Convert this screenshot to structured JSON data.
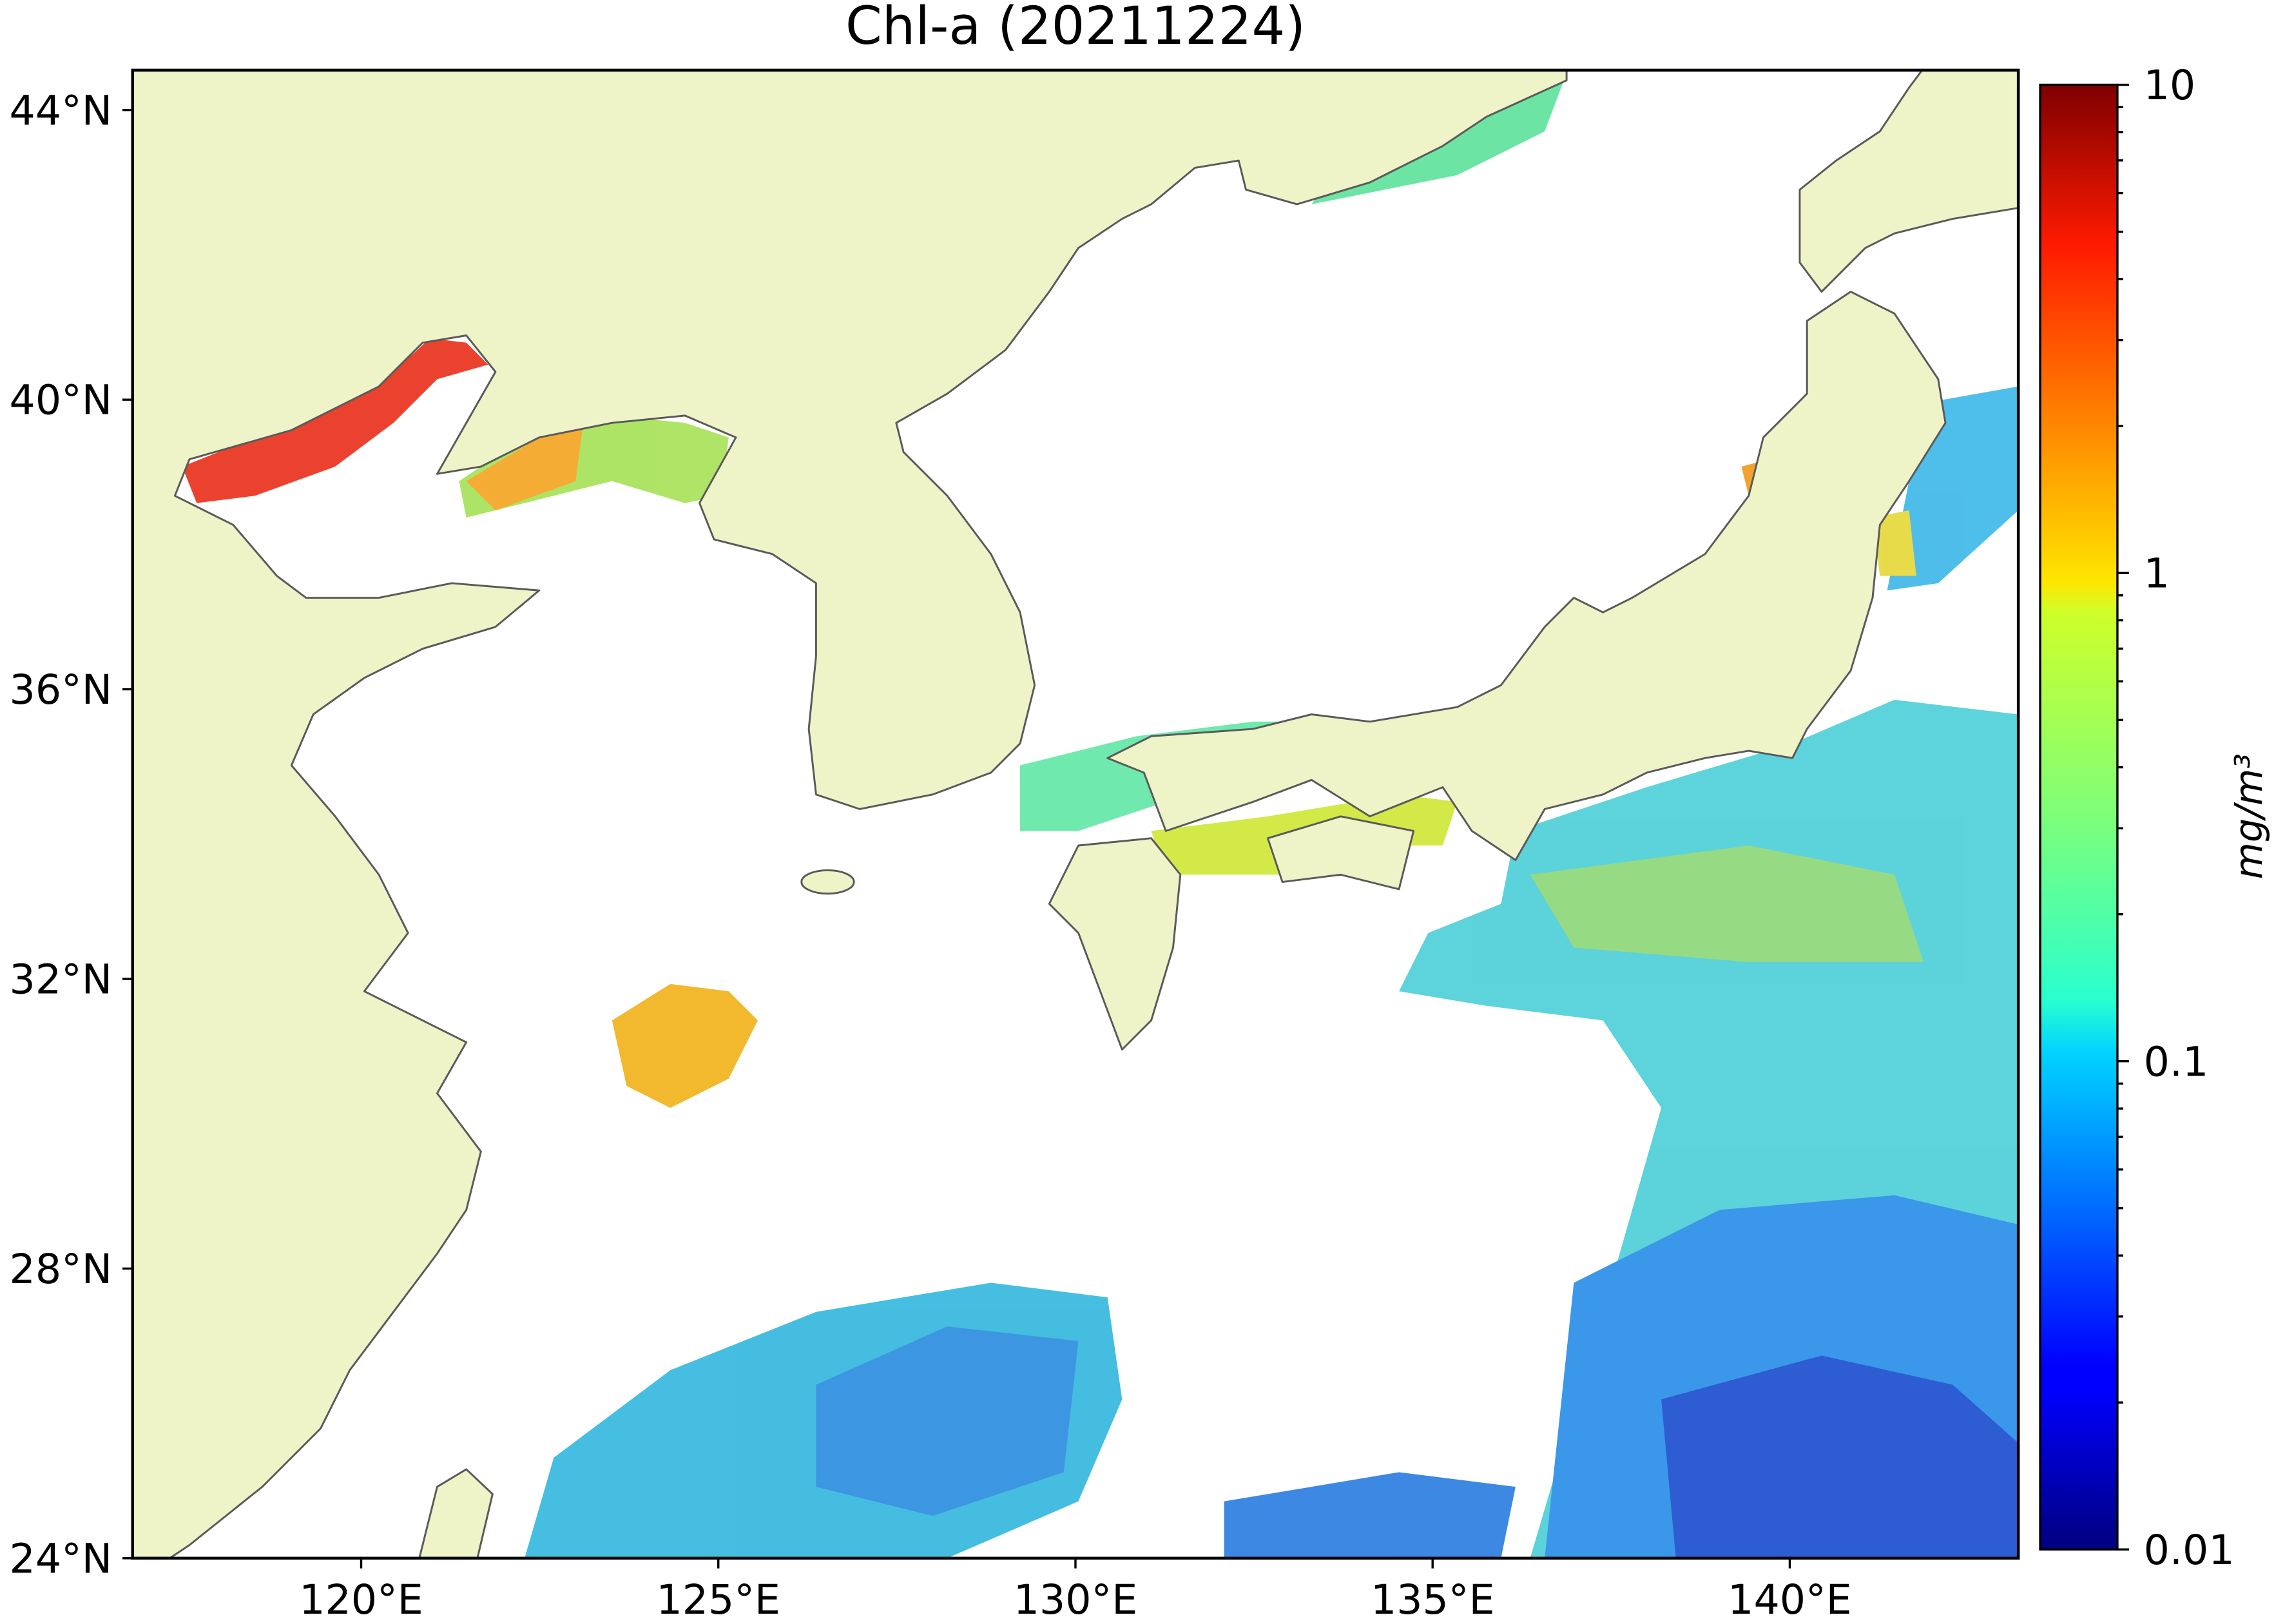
{
  "chart_data": {
    "type": "map",
    "title": "Chl-a (20211224)",
    "xlim": [
      116.8,
      143.2
    ],
    "ylim": [
      24,
      44.55
    ],
    "xticks": [
      {
        "value": 120,
        "label": "120°E"
      },
      {
        "value": 125,
        "label": "125°E"
      },
      {
        "value": 130,
        "label": "130°E"
      },
      {
        "value": 135,
        "label": "135°E"
      },
      {
        "value": 140,
        "label": "140°E"
      }
    ],
    "yticks": [
      {
        "value": 24,
        "label": "24°N"
      },
      {
        "value": 28,
        "label": "28°N"
      },
      {
        "value": 32,
        "label": "32°N"
      },
      {
        "value": 36,
        "label": "36°N"
      },
      {
        "value": 40,
        "label": "40°N"
      },
      {
        "value": 44,
        "label": "44°N"
      }
    ],
    "colorbar": {
      "label": "mg/m³",
      "colormap": "jet",
      "log_scale": true,
      "lim": [
        0.01,
        10
      ],
      "ticks": [
        0.01,
        0.1,
        1,
        10
      ]
    }
  }
}
